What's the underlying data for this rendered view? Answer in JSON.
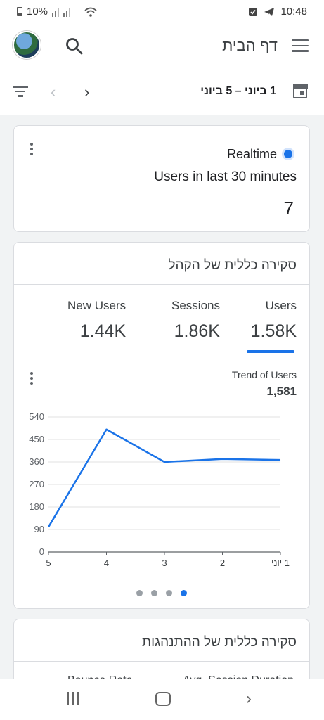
{
  "status": {
    "battery": "10%",
    "time": "10:48"
  },
  "appbar": {
    "title": "דף הבית"
  },
  "datebar": {
    "range": "1 ביוני – 5 ביוני"
  },
  "realtime": {
    "title": "Realtime",
    "subtitle": "Users in last 30 minutes",
    "value": "7"
  },
  "audience": {
    "title": "סקירה כללית של הקהל",
    "metrics": [
      {
        "label": "New Users",
        "value": "1.44K"
      },
      {
        "label": "Sessions",
        "value": "1.86K"
      },
      {
        "label": "Users",
        "value": "1.58K"
      }
    ],
    "trend_label": "Trend of Users",
    "trend_value": "1,581",
    "active_page": 4,
    "page_count": 4
  },
  "behavior": {
    "title": "סקירה כללית של ההתנהגות",
    "columns": [
      "Bounce Rate",
      "Avg. Session Duration"
    ]
  },
  "chart_data": {
    "type": "line",
    "x": [
      "5",
      "4",
      "3",
      "2",
      "1 יוני"
    ],
    "series": [
      {
        "values": [
          100,
          490,
          360,
          372,
          368
        ],
        "color": "#1a73e8"
      }
    ],
    "yticks": [
      0,
      90,
      180,
      270,
      360,
      450,
      540
    ],
    "ylim": [
      0,
      540
    ],
    "grid": true
  }
}
